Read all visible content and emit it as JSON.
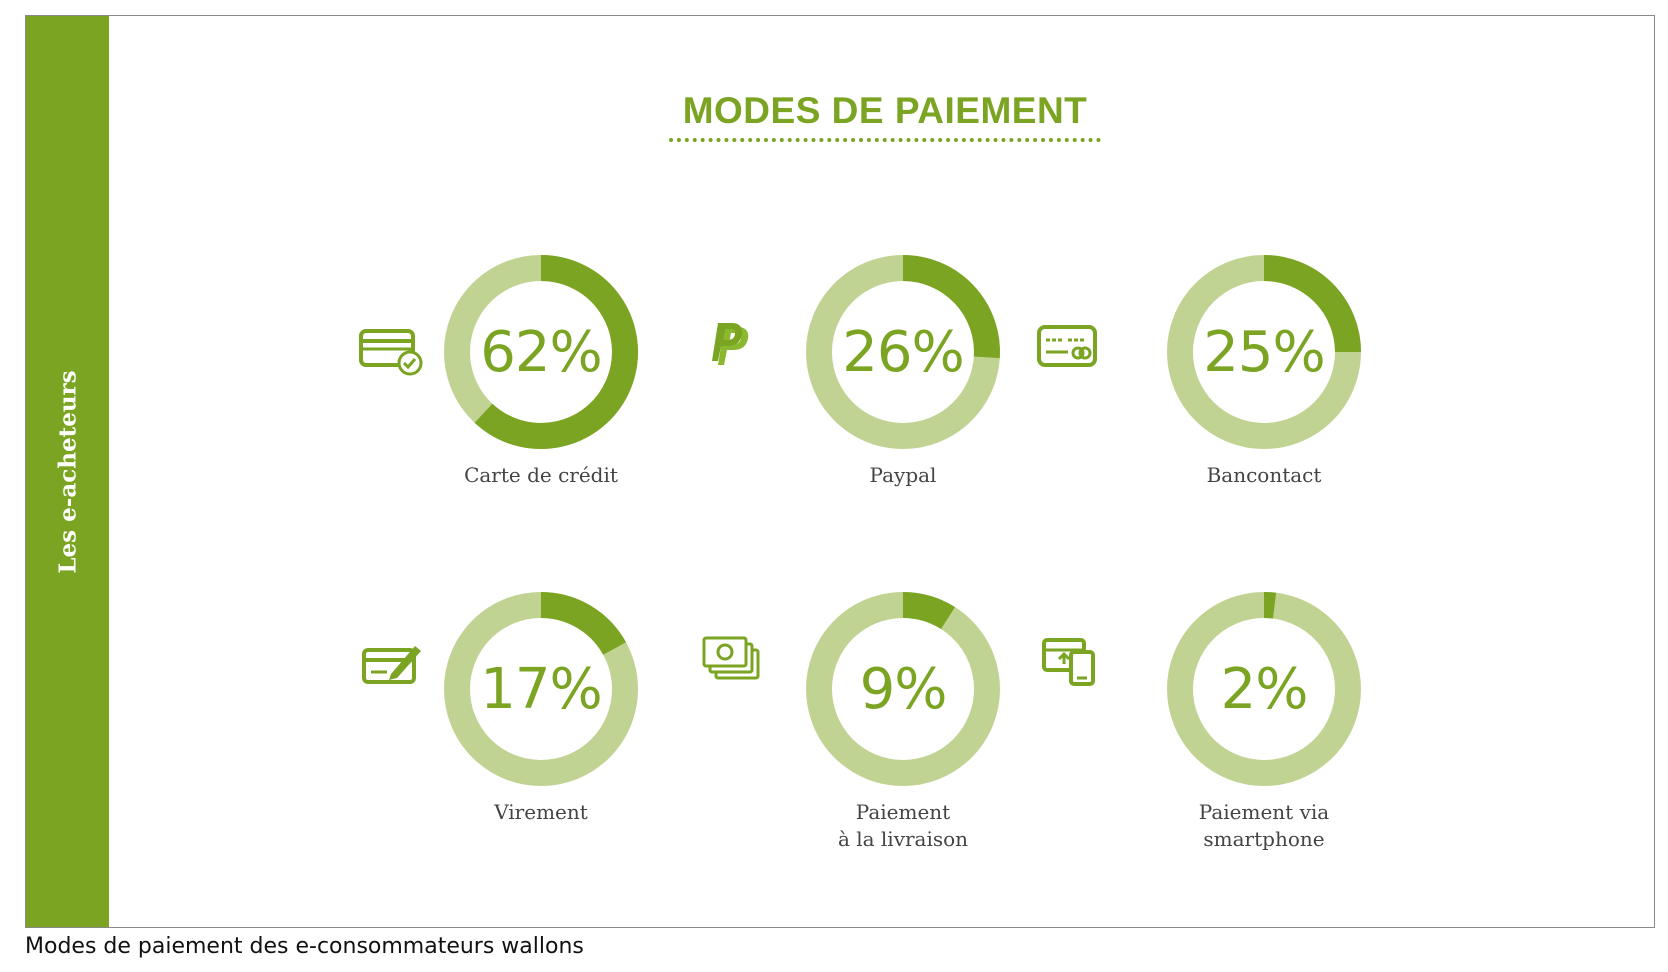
{
  "side_label": "Les e-acheteurs",
  "caption": "Modes de paiement des e-consommateurs wallons",
  "colors": {
    "accent": "#7aa422",
    "track": "#c0d392",
    "side": "#7aa422"
  },
  "chart_data": {
    "type": "pie",
    "title": "MODES DE PAIEMENT",
    "items": [
      {
        "label": "Carte de crédit",
        "value": 62,
        "display": "62%",
        "icon": "credit-card-check-icon"
      },
      {
        "label": "Paypal",
        "value": 26,
        "display": "26%",
        "icon": "paypal-icon"
      },
      {
        "label": "Bancontact",
        "value": 25,
        "display": "25%",
        "icon": "bank-card-icon"
      },
      {
        "label": "Virement",
        "value": 17,
        "display": "17%",
        "icon": "cheque-pen-icon"
      },
      {
        "label": "Paiement\nà la livraison",
        "value": 9,
        "display": "9%",
        "icon": "cash-bills-icon"
      },
      {
        "label": "Paiement via\nsmartphone",
        "value": 2,
        "display": "2%",
        "icon": "smartphone-transfer-icon"
      }
    ]
  }
}
